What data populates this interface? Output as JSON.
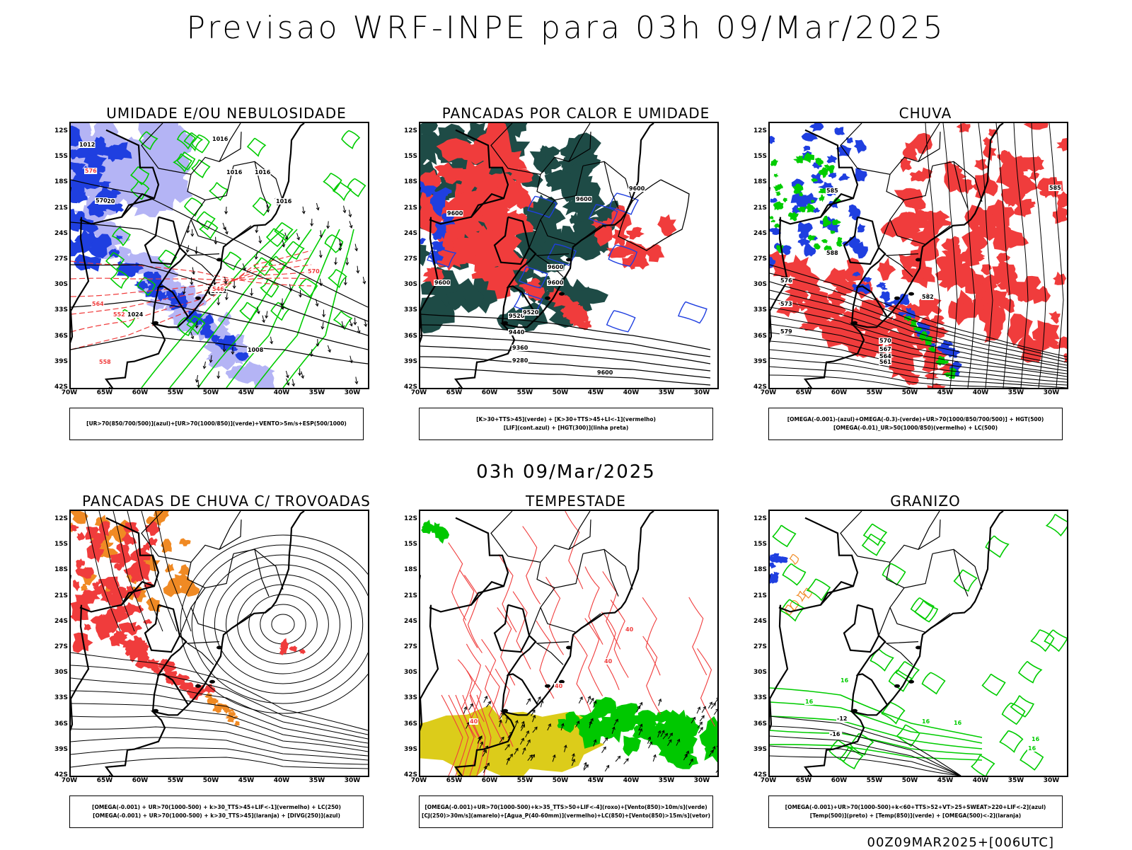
{
  "header": {
    "title": "Previsao WRF-INPE  para 03h 09/Mar/2025",
    "mid_title": "03h 09/Mar/2025",
    "footer": "00Z09MAR2025+[006UTC]"
  },
  "axes": {
    "lat_labels": [
      "12S",
      "15S",
      "18S",
      "21S",
      "24S",
      "27S",
      "30S",
      "33S",
      "36S",
      "39S",
      "42S"
    ],
    "lon_labels": [
      "70W",
      "65W",
      "60W",
      "55W",
      "50W",
      "45W",
      "40W",
      "35W",
      "30W"
    ]
  },
  "colors": {
    "blue": "#1f3fe0",
    "light_blue": "#b4b4f5",
    "green": "#00cc00",
    "red": "#f03c3c",
    "dark_teal": "#1e4b46",
    "orange": "#f08a24",
    "yellow": "#dccc1a",
    "bright_green": "#00c800"
  },
  "panels": [
    {
      "id": "umidade",
      "title": "UMIDADE E/OU NEBULOSIDADE",
      "legend": [
        "[UR>70(850/700/500)](azul)+[UR>70(1000/850)](verde)+VENTO>5m/s+ESP(500/1000)"
      ],
      "contour_labels": [
        "1012",
        "1016",
        "1016",
        "1020",
        "1024",
        "1012",
        "1016",
        "1016",
        "1008",
        "570",
        "576",
        "564",
        "552",
        "558",
        "546",
        "570"
      ]
    },
    {
      "id": "pancadas_calor",
      "title": "PANCADAS POR CALOR E UMIDADE",
      "legend": [
        "[K>30+TTS>45](verde) + [K>30+TTS>45+LI<-1](vermelho)",
        "[LIF](cont.azul) + [HGT(300)](linha preta)"
      ],
      "contour_labels": [
        "9600",
        "9600",
        "9600",
        "9600",
        "9520",
        "9440",
        "9360",
        "9280",
        "9520",
        "9600",
        "9600",
        "9600"
      ]
    },
    {
      "id": "chuva",
      "title": "CHUVA",
      "legend": [
        "[OMEGA(-0.001)-(azul)+OMEGA(-0.3)-(verde)+UR>70(1000/850/700/500)] + HGT(500)",
        "[OMEGA(-0.01)_UR>50(1000/850)(vermelho) + LC(500)"
      ],
      "contour_labels": [
        "585",
        "588",
        "582",
        "579",
        "576",
        "573",
        "570",
        "567",
        "564",
        "561",
        "585"
      ]
    },
    {
      "id": "trovoadas",
      "title": "PANCADAS DE CHUVA C/ TROVOADAS",
      "legend": [
        "[OMEGA(-0.001) + UR>70(1000-500) + k>30_TTS>45+LIF<-1](vermelho) + LC(250)",
        "[OMEGA(-0.001) + UR>70(1000-500) + k>30_TTS>45](laranja) + [DIVG(250)](azul)"
      ],
      "contour_labels": []
    },
    {
      "id": "tempestade",
      "title": "TEMPESTADE",
      "legend": [
        "[OMEGA(-0.001)+UR>70(1000-500)+k>35_TTS>50+LIF<-4](roxo)+[Vento(850)>10m/s](verde)",
        "[CJ(250)>30m/s](amarelo)+[Agua_P(40-60mm)](vermelho)+LC(850)+[Vento(850)>15m/s](vetor)"
      ],
      "contour_labels": [
        "40",
        "40",
        "40",
        "40"
      ]
    },
    {
      "id": "granizo",
      "title": "GRANIZO",
      "legend": [
        "[OMEGA(-0.001)+UR>70(1000-500)+k<60+TTS>52+VT>25+SWEAT>220+LIF<-2](azul)",
        "[Temp(500)](preto) + [Temp(850)](verde) + [OMEGA(500)<-2](laranja)"
      ],
      "contour_labels": [
        "-12",
        "-16",
        "16",
        "16",
        "16",
        "16",
        "16",
        "16"
      ]
    }
  ]
}
